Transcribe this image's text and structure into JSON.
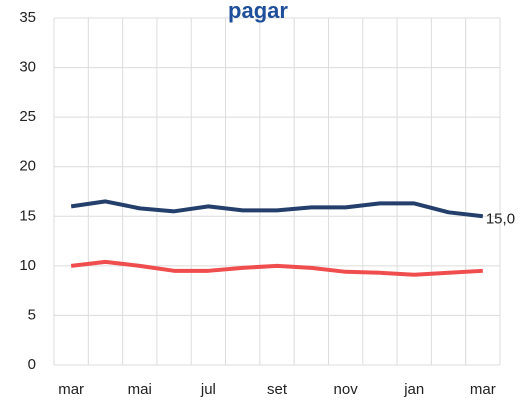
{
  "chart_data": {
    "type": "line",
    "title": "pagar",
    "categories": [
      "mar",
      null,
      "mai",
      null,
      "jul",
      null,
      "set",
      null,
      "nov",
      null,
      "jan",
      null,
      "mar"
    ],
    "series": [
      {
        "color": "#243f6b",
        "values": [
          16.0,
          16.5,
          15.8,
          15.5,
          16.0,
          15.6,
          15.6,
          15.9,
          15.9,
          16.3,
          16.3,
          15.4,
          15.0
        ],
        "value_labels": [
          null,
          null,
          null,
          null,
          null,
          null,
          null,
          null,
          null,
          null,
          null,
          null,
          "15,0"
        ]
      },
      {
        "color": "#f04e4e",
        "values": [
          10.0,
          10.4,
          10.0,
          9.5,
          9.5,
          9.8,
          10.0,
          9.8,
          9.4,
          9.3,
          9.1,
          9.3,
          9.5
        ]
      }
    ],
    "ylim": [
      0,
      35
    ],
    "yticks": [
      0,
      5,
      10,
      15,
      20,
      25,
      30,
      35
    ],
    "grid": true
  }
}
